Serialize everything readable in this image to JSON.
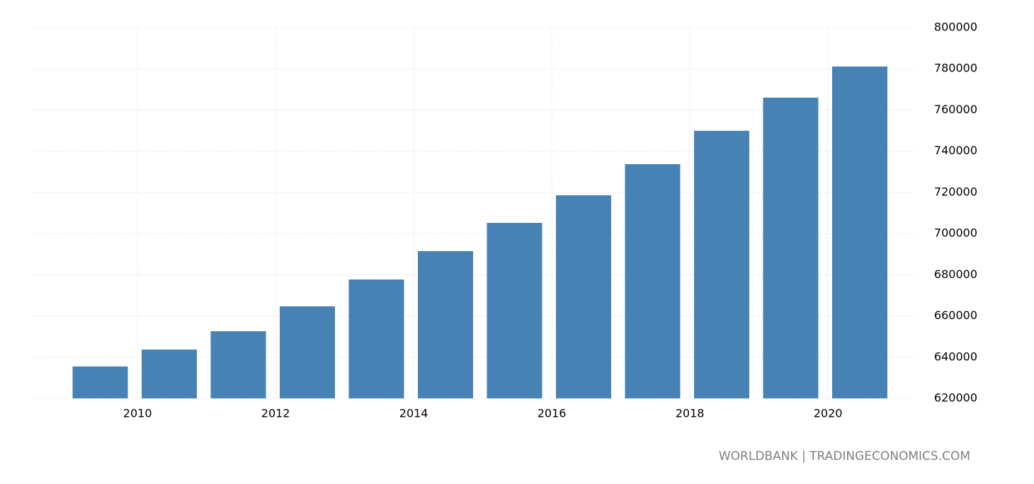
{
  "chart_data": {
    "type": "bar",
    "x": [
      2009,
      2010,
      2011,
      2012,
      2013,
      2014,
      2015,
      2016,
      2017,
      2018,
      2019,
      2020
    ],
    "values": [
      635500,
      643700,
      652600,
      664700,
      677700,
      691500,
      705200,
      718600,
      733700,
      749900,
      766000,
      781100
    ],
    "color": "#4682b4",
    "xlim": [
      2008.46,
      2021.24
    ],
    "xticks": [
      2010,
      2012,
      2014,
      2016,
      2018,
      2020
    ],
    "ylim": [
      620000,
      800000
    ],
    "yticks": [
      620000,
      640000,
      660000,
      680000,
      700000,
      720000,
      740000,
      760000,
      780000,
      800000
    ],
    "grid": true,
    "source": "WORLDBANK | TRADINGECONOMICS.COM"
  }
}
